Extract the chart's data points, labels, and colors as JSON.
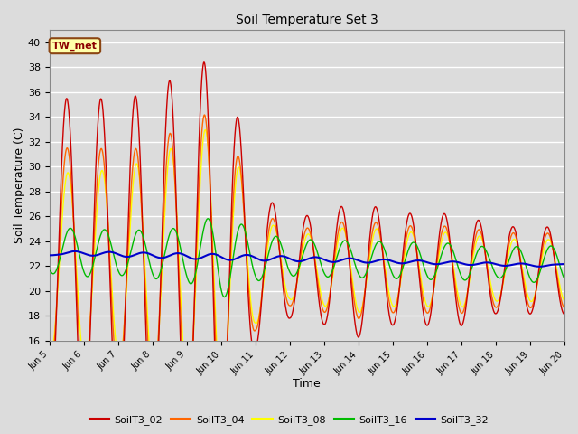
{
  "title": "Soil Temperature Set 3",
  "xlabel": "Time",
  "ylabel": "Soil Temperature (C)",
  "ylim": [
    16,
    41
  ],
  "xlim": [
    0,
    360
  ],
  "yticks": [
    16,
    18,
    20,
    22,
    24,
    26,
    28,
    30,
    32,
    34,
    36,
    38,
    40
  ],
  "xtick_labels": [
    "Jun 5",
    "Jun 6",
    "Jun 7",
    "Jun 8",
    "Jun 9",
    "Jun 10",
    "Jun 11",
    "Jun 12",
    "Jun 13",
    "Jun 14",
    "Jun 15",
    "Jun 16",
    "Jun 17",
    "Jun 18",
    "Jun 19",
    "Jun 20"
  ],
  "xtick_positions": [
    0,
    24,
    48,
    72,
    96,
    120,
    144,
    168,
    192,
    216,
    240,
    264,
    288,
    312,
    336,
    360
  ],
  "annotation_text": "TW_met",
  "annotation_color": "#8B0000",
  "annotation_bg": "#FFFFAA",
  "annotation_border": "#8B4513",
  "series": {
    "SoilT3_02": {
      "color": "#CC0000",
      "linewidth": 1.0
    },
    "SoilT3_04": {
      "color": "#FF6600",
      "linewidth": 1.0
    },
    "SoilT3_08": {
      "color": "#FFFF00",
      "linewidth": 1.0
    },
    "SoilT3_16": {
      "color": "#00BB00",
      "linewidth": 1.0
    },
    "SoilT3_32": {
      "color": "#0000CC",
      "linewidth": 1.5
    }
  },
  "bg_color": "#DCDCDC",
  "plot_bg_color": "#DCDCDC",
  "grid_color": "#FFFFFF",
  "legend_colors": [
    "#CC0000",
    "#FF6600",
    "#FFFF00",
    "#00BB00",
    "#0000CC"
  ],
  "legend_labels": [
    "SoilT3_02",
    "SoilT3_04",
    "SoilT3_08",
    "SoilT3_16",
    "SoilT3_32"
  ]
}
